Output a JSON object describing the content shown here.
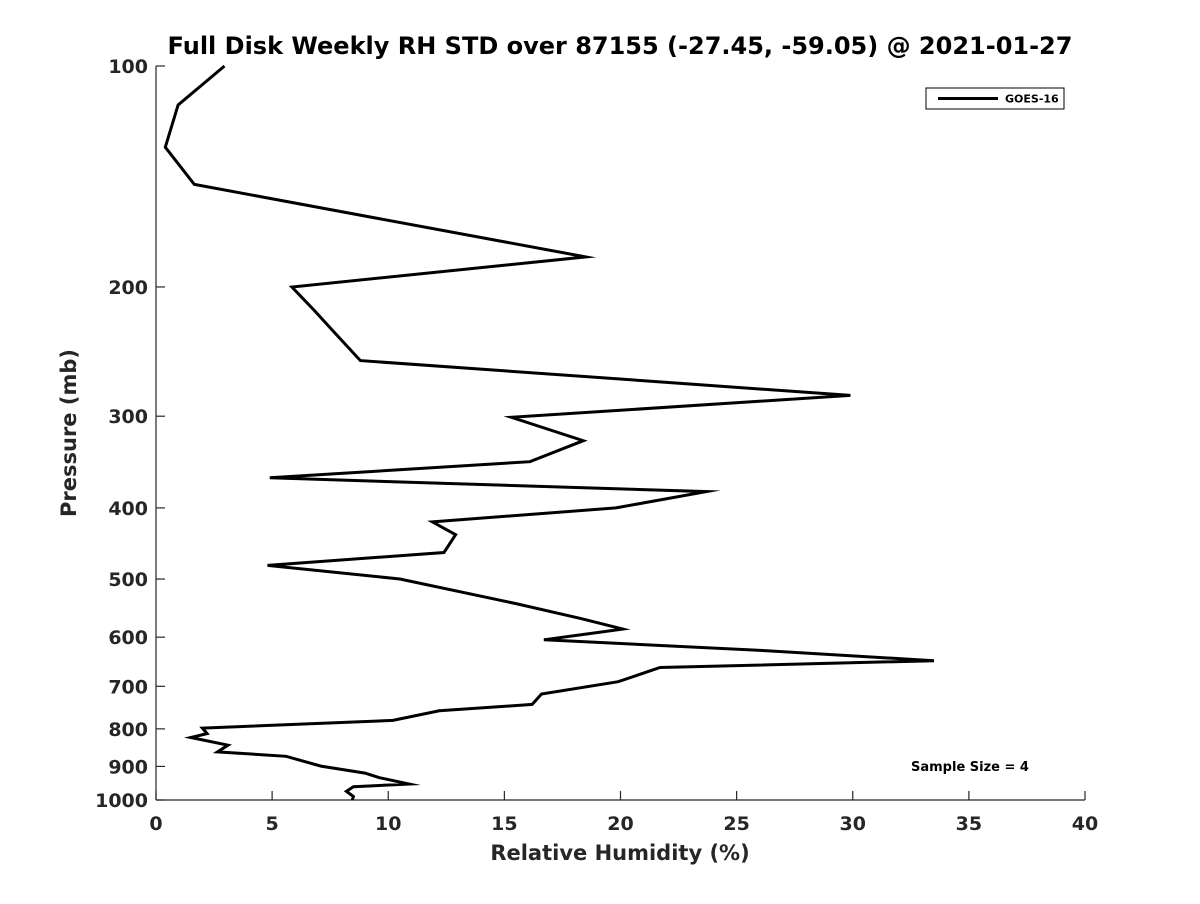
{
  "chart_data": {
    "type": "line",
    "title": "Full Disk Weekly RH STD over 87155 (-27.45, -59.05) @ 2021-01-27",
    "xlabel": "Relative Humidity (%)",
    "ylabel": "Pressure (mb)",
    "xlim": [
      0,
      40
    ],
    "ylim": [
      100,
      1000
    ],
    "yscale": "log",
    "y_reversed": true,
    "grid": false,
    "xticks": [
      0,
      5,
      10,
      15,
      20,
      25,
      30,
      35,
      40
    ],
    "xtick_labels": [
      "0",
      "5",
      "10",
      "15",
      "20",
      "25",
      "30",
      "35",
      "40"
    ],
    "yticks": [
      100,
      200,
      300,
      400,
      500,
      600,
      700,
      800,
      900,
      1000
    ],
    "ytick_labels": [
      "100",
      "200",
      "300",
      "400",
      "500",
      "600",
      "700",
      "800",
      "900",
      "1000"
    ],
    "legend_position": "top-right",
    "annotation": "Sample Size = 4",
    "series": [
      {
        "name": "GOES-16",
        "color": "#000000",
        "x": [
          2.95,
          0.95,
          0.4,
          1.65,
          18.5,
          5.85,
          6.8,
          7.7,
          8.8,
          29.9,
          15.3,
          18.4,
          16.1,
          4.9,
          23.7,
          19.8,
          11.9,
          12.9,
          12.4,
          4.8,
          10.5,
          15.5,
          18.3,
          20.1,
          16.7,
          26.3,
          33.5,
          21.7,
          19.9,
          16.6,
          16.2,
          12.2,
          10.2,
          2.0,
          2.2,
          1.5,
          3.1,
          2.65,
          5.6,
          7.1,
          9.0,
          9.6,
          10.9,
          8.5,
          8.2,
          8.5,
          8.45
        ],
        "y": [
          100,
          113,
          129,
          145,
          182,
          200,
          215,
          231,
          252,
          281,
          301,
          324,
          346,
          364,
          380,
          400,
          418,
          435,
          460,
          479,
          500,
          540,
          566,
          585,
          605,
          626,
          646,
          660,
          690,
          717,
          741,
          756,
          779,
          798,
          812,
          822,
          842,
          860,
          872,
          899,
          919,
          932,
          951,
          959,
          973,
          989,
          1000
        ]
      }
    ]
  }
}
